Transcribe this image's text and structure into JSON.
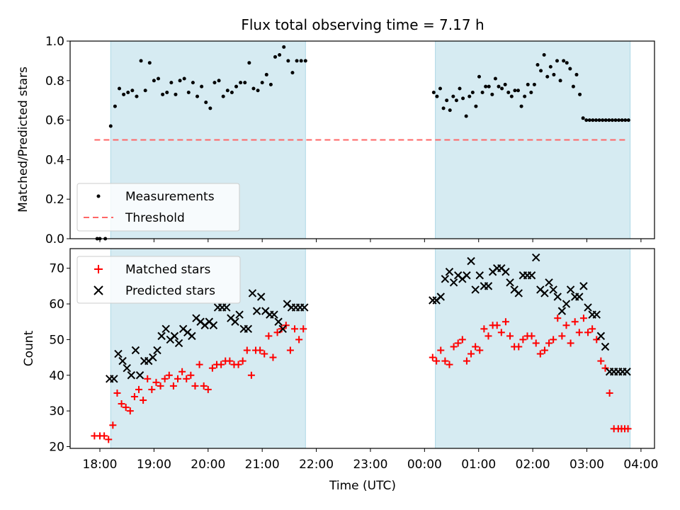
{
  "title": "Flux total observing time = 7.17 h",
  "colors": {
    "shade": "#add8e6",
    "threshold": "#ff6666",
    "matched": "#ff0000",
    "predicted": "#000000",
    "measurement": "#000000"
  },
  "chart_data": [
    {
      "type": "scatter",
      "ylabel": "Matched/Predicted stars",
      "ylim": [
        0.0,
        1.0
      ],
      "yticks": [
        "0.0",
        "0.2",
        "0.4",
        "0.6",
        "0.8",
        "1.0"
      ],
      "ytick_values": [
        0.0,
        0.2,
        0.4,
        0.6,
        0.8,
        1.0
      ],
      "legend": {
        "placement": "lower-left",
        "entries": [
          "Measurements",
          "Threshold"
        ]
      },
      "threshold": {
        "name": "Threshold",
        "value": 0.5,
        "x_range": [
          -0.1,
          9.75
        ]
      },
      "shaded_spans": [
        [
          0.2,
          3.8
        ],
        [
          6.2,
          9.8
        ]
      ],
      "series": [
        {
          "name": "Measurements",
          "x": [
            -0.05,
            0.0,
            0.1,
            0.2,
            0.28,
            0.36,
            0.44,
            0.52,
            0.6,
            0.68,
            0.76,
            0.84,
            0.92,
            1.0,
            1.08,
            1.16,
            1.24,
            1.32,
            1.4,
            1.48,
            1.56,
            1.64,
            1.72,
            1.8,
            1.88,
            1.96,
            2.04,
            2.12,
            2.2,
            2.28,
            2.36,
            2.44,
            2.52,
            2.6,
            2.68,
            2.76,
            2.84,
            2.92,
            3.0,
            3.08,
            3.16,
            3.24,
            3.32,
            3.4,
            3.48,
            3.56,
            3.64,
            3.72,
            3.8,
            6.17,
            6.23,
            6.29,
            6.35,
            6.41,
            6.47,
            6.53,
            6.59,
            6.65,
            6.71,
            6.77,
            6.83,
            6.89,
            6.95,
            7.01,
            7.07,
            7.13,
            7.19,
            7.25,
            7.31,
            7.37,
            7.43,
            7.49,
            7.55,
            7.61,
            7.67,
            7.73,
            7.79,
            7.85,
            7.91,
            7.97,
            8.03,
            8.09,
            8.15,
            8.21,
            8.27,
            8.33,
            8.39,
            8.45,
            8.51,
            8.57,
            8.63,
            8.69,
            8.75,
            8.81,
            8.87,
            8.93,
            8.99,
            9.05,
            9.11,
            9.17,
            9.23,
            9.29,
            9.35,
            9.41,
            9.47,
            9.53,
            9.59,
            9.65,
            9.71,
            9.77
          ],
          "y": [
            0.0,
            0.0,
            0.0,
            0.57,
            0.67,
            0.76,
            0.73,
            0.74,
            0.75,
            0.72,
            0.9,
            0.75,
            0.89,
            0.8,
            0.81,
            0.73,
            0.74,
            0.79,
            0.73,
            0.8,
            0.81,
            0.74,
            0.79,
            0.72,
            0.77,
            0.69,
            0.66,
            0.79,
            0.8,
            0.72,
            0.75,
            0.74,
            0.77,
            0.79,
            0.79,
            0.89,
            0.76,
            0.75,
            0.79,
            0.83,
            0.78,
            0.92,
            0.93,
            0.97,
            0.9,
            0.84,
            0.9,
            0.9,
            0.9,
            0.74,
            0.72,
            0.76,
            0.66,
            0.7,
            0.65,
            0.72,
            0.7,
            0.76,
            0.71,
            0.62,
            0.72,
            0.74,
            0.67,
            0.82,
            0.74,
            0.77,
            0.77,
            0.73,
            0.81,
            0.77,
            0.76,
            0.78,
            0.74,
            0.72,
            0.75,
            0.75,
            0.67,
            0.72,
            0.78,
            0.74,
            0.78,
            0.88,
            0.85,
            0.93,
            0.82,
            0.87,
            0.83,
            0.9,
            0.8,
            0.9,
            0.89,
            0.86,
            0.77,
            0.83,
            0.73,
            0.61,
            0.6,
            0.6,
            0.6,
            0.6,
            0.6,
            0.6,
            0.6,
            0.6,
            0.6,
            0.6,
            0.6,
            0.6,
            0.6,
            0.6
          ]
        }
      ]
    },
    {
      "type": "scatter",
      "xlabel": "Time (UTC)",
      "ylabel": "Count",
      "ylim": [
        19.5,
        75.5
      ],
      "yticks": [
        "20",
        "30",
        "40",
        "50",
        "60",
        "70"
      ],
      "ytick_values": [
        20,
        30,
        40,
        50,
        60,
        70
      ],
      "xlim": [
        -0.55,
        10.25
      ],
      "xticks": [
        "18:00",
        "19:00",
        "20:00",
        "21:00",
        "22:00",
        "23:00",
        "00:00",
        "01:00",
        "02:00",
        "03:00",
        "04:00"
      ],
      "xtick_values": [
        0,
        1,
        2,
        3,
        4,
        5,
        6,
        7,
        8,
        9,
        10
      ],
      "legend": {
        "placement": "upper-left",
        "entries": [
          "Matched stars",
          "Predicted stars"
        ]
      },
      "shaded_spans": [
        [
          0.2,
          3.8
        ],
        [
          6.2,
          9.8
        ]
      ],
      "series": [
        {
          "name": "Matched stars",
          "x": [
            -0.1,
            0.0,
            0.08,
            0.16,
            0.24,
            0.32,
            0.4,
            0.48,
            0.56,
            0.64,
            0.72,
            0.8,
            0.88,
            0.96,
            1.04,
            1.12,
            1.2,
            1.28,
            1.36,
            1.44,
            1.52,
            1.6,
            1.68,
            1.76,
            1.84,
            1.92,
            2.0,
            2.08,
            2.16,
            2.24,
            2.32,
            2.4,
            2.48,
            2.56,
            2.64,
            2.72,
            2.8,
            2.88,
            2.96,
            3.04,
            3.12,
            3.2,
            3.28,
            3.36,
            3.44,
            3.52,
            3.6,
            3.68,
            3.76,
            6.15,
            6.22,
            6.3,
            6.38,
            6.46,
            6.54,
            6.62,
            6.7,
            6.78,
            6.86,
            6.94,
            7.02,
            7.1,
            7.18,
            7.26,
            7.34,
            7.42,
            7.5,
            7.58,
            7.66,
            7.74,
            7.82,
            7.9,
            7.98,
            8.06,
            8.14,
            8.22,
            8.3,
            8.38,
            8.46,
            8.54,
            8.62,
            8.7,
            8.78,
            8.86,
            8.94,
            9.02,
            9.1,
            9.18,
            9.26,
            9.34,
            9.42,
            9.5,
            9.58,
            9.64,
            9.7,
            9.76
          ],
          "y": [
            23,
            23,
            23,
            22,
            26,
            35,
            32,
            31,
            30,
            34,
            36,
            33,
            39,
            36,
            38,
            37,
            39,
            40,
            37,
            39,
            41,
            39,
            40,
            37,
            43,
            37,
            36,
            42,
            43,
            43,
            44,
            44,
            43,
            43,
            44,
            47,
            40,
            47,
            47,
            46,
            51,
            45,
            52,
            53,
            54,
            47,
            53,
            50,
            53,
            45,
            44,
            47,
            44,
            43,
            48,
            49,
            50,
            44,
            46,
            48,
            47,
            53,
            51,
            54,
            54,
            52,
            55,
            51,
            48,
            48,
            50,
            51,
            51,
            49,
            46,
            47,
            49,
            50,
            56,
            51,
            54,
            49,
            55,
            52,
            56,
            52,
            53,
            50,
            44,
            42,
            35,
            25,
            25,
            25,
            25,
            25
          ]
        },
        {
          "name": "Predicted stars",
          "x": [
            0.18,
            0.26,
            0.34,
            0.42,
            0.5,
            0.58,
            0.66,
            0.74,
            0.82,
            0.9,
            0.98,
            1.06,
            1.14,
            1.22,
            1.3,
            1.38,
            1.46,
            1.54,
            1.62,
            1.7,
            1.78,
            1.86,
            1.94,
            2.02,
            2.1,
            2.18,
            2.26,
            2.34,
            2.42,
            2.5,
            2.58,
            2.66,
            2.74,
            2.82,
            2.9,
            2.98,
            3.06,
            3.14,
            3.22,
            3.3,
            3.38,
            3.46,
            3.54,
            3.62,
            3.7,
            3.78,
            6.15,
            6.22,
            6.3,
            6.38,
            6.46,
            6.54,
            6.62,
            6.7,
            6.78,
            6.86,
            6.94,
            7.02,
            7.1,
            7.18,
            7.26,
            7.34,
            7.42,
            7.5,
            7.58,
            7.66,
            7.74,
            7.82,
            7.9,
            7.98,
            8.06,
            8.14,
            8.22,
            8.3,
            8.38,
            8.46,
            8.54,
            8.62,
            8.7,
            8.78,
            8.86,
            8.94,
            9.02,
            9.1,
            9.18,
            9.26,
            9.34,
            9.42,
            9.5,
            9.58,
            9.66,
            9.74
          ],
          "y": [
            39,
            39,
            46,
            44,
            42,
            40,
            47,
            40,
            44,
            44,
            45,
            47,
            51,
            53,
            50,
            51,
            49,
            53,
            52,
            51,
            56,
            55,
            54,
            55,
            54,
            59,
            59,
            59,
            56,
            55,
            57,
            53,
            53,
            63,
            58,
            62,
            58,
            57,
            57,
            55,
            53,
            60,
            59,
            59,
            59,
            59,
            61,
            61,
            62,
            67,
            69,
            66,
            68,
            67,
            68,
            72,
            64,
            68,
            65,
            65,
            69,
            70,
            70,
            69,
            66,
            64,
            63,
            68,
            68,
            68,
            73,
            64,
            63,
            66,
            64,
            62,
            58,
            60,
            64,
            62,
            62,
            65,
            59,
            57,
            57,
            51,
            48,
            41,
            41,
            41,
            41,
            41
          ]
        }
      ]
    }
  ]
}
